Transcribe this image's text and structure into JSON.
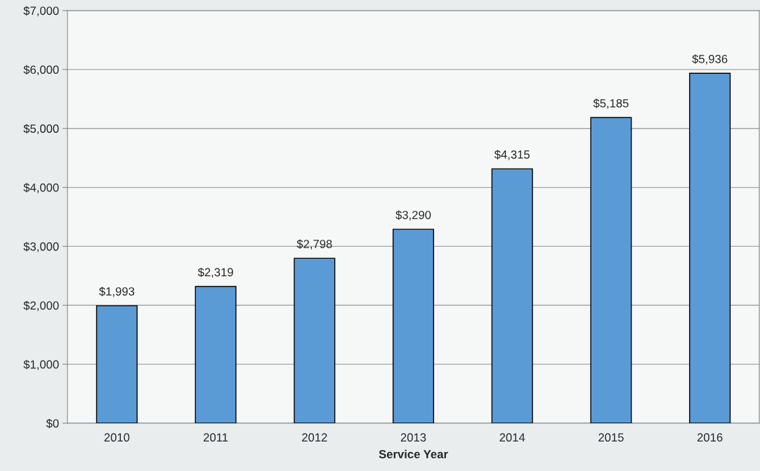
{
  "chart_data": {
    "type": "bar",
    "xlabel": "Service Year",
    "categories": [
      "2010",
      "2011",
      "2012",
      "2013",
      "2014",
      "2015",
      "2016"
    ],
    "values": [
      1993,
      2319,
      2798,
      3290,
      4315,
      5185,
      5936
    ],
    "value_labels": [
      "$1,993",
      "$2,319",
      "$2,798",
      "$3,290",
      "$4,315",
      "$5,185",
      "$5,936"
    ],
    "color": "#5b9bd5",
    "ylim": [
      0,
      7000
    ],
    "yticks": [
      {
        "value": 0,
        "label": "$0"
      },
      {
        "value": 1000,
        "label": "$1,000"
      },
      {
        "value": 2000,
        "label": "$2,000"
      },
      {
        "value": 3000,
        "label": "$3,000"
      },
      {
        "value": 4000,
        "label": "$4,000"
      },
      {
        "value": 5000,
        "label": "$5,000"
      },
      {
        "value": 6000,
        "label": "$6,000"
      },
      {
        "value": 7000,
        "label": "$7,000"
      }
    ],
    "grid": "y"
  }
}
